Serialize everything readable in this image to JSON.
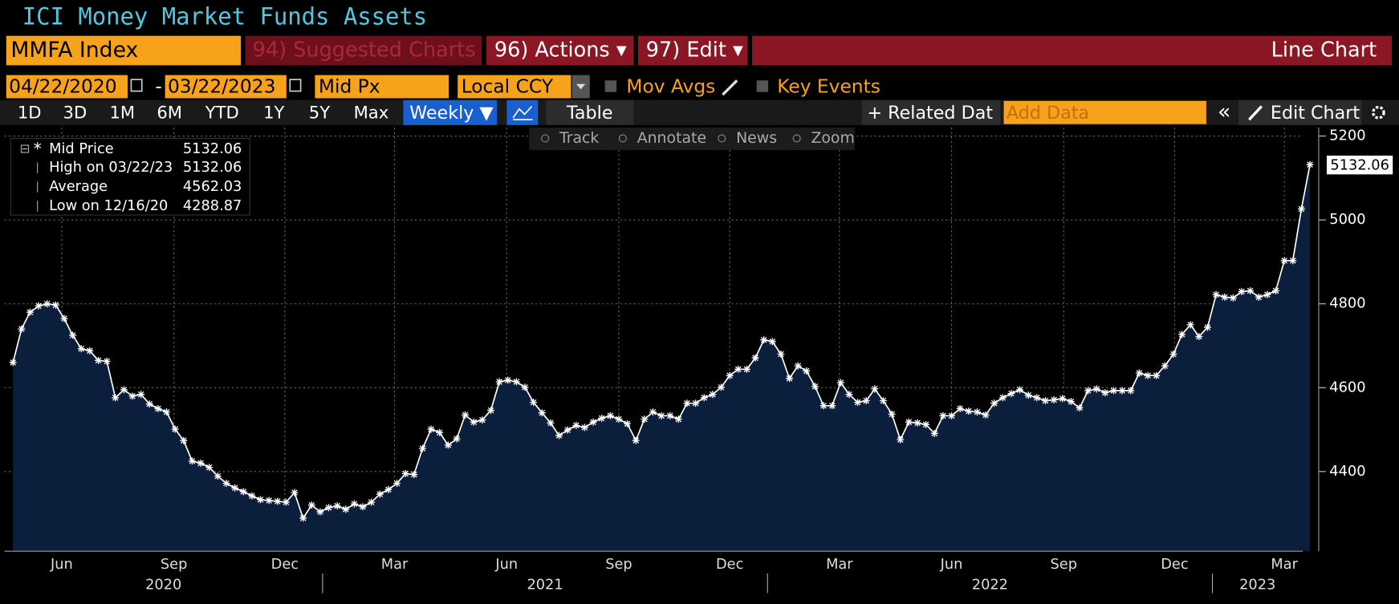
{
  "title": "ICI Money Market Funds Assets",
  "toolbar": {
    "ticker": "MMFA Index",
    "suggested": "94) Suggested Charts",
    "actions": "96) Actions ▾",
    "edit": "97) Edit ▾",
    "chart_kind": "Line Chart"
  },
  "controls": {
    "start_date": "04/22/2020",
    "separator": "-",
    "end_date": "03/22/2023",
    "field": "Mid Px",
    "currency": "Local CCY",
    "mov_avgs": "Mov Avgs",
    "key_events": "Key Events"
  },
  "periods": [
    "1D",
    "3D",
    "1M",
    "6M",
    "YTD",
    "1Y",
    "5Y",
    "Max"
  ],
  "frequency": "Weekly ▼",
  "table": "Table",
  "related": "+ Related Dat",
  "add_data": "Add Data",
  "back": "«",
  "edit_chart": "Edit Chart",
  "chart_tools": [
    "Track",
    "Annotate",
    "News",
    "Zoom"
  ],
  "chart_data": {
    "type": "line",
    "x": [
      "2020-04-22",
      "2020-04-29",
      "2020-05-06",
      "2020-05-13",
      "2020-05-20",
      "2020-05-27",
      "2020-06-03",
      "2020-06-10",
      "2020-06-17",
      "2020-06-24",
      "2020-07-01",
      "2020-07-08",
      "2020-07-15",
      "2020-07-22",
      "2020-07-29",
      "2020-08-05",
      "2020-08-12",
      "2020-08-19",
      "2020-08-26",
      "2020-09-02",
      "2020-09-09",
      "2020-09-16",
      "2020-09-23",
      "2020-09-30",
      "2020-10-07",
      "2020-10-14",
      "2020-10-21",
      "2020-10-28",
      "2020-11-04",
      "2020-11-11",
      "2020-11-18",
      "2020-11-25",
      "2020-12-02",
      "2020-12-09",
      "2020-12-16",
      "2020-12-23",
      "2020-12-30",
      "2021-01-06",
      "2021-01-13",
      "2021-01-20",
      "2021-01-27",
      "2021-02-03",
      "2021-02-10",
      "2021-02-17",
      "2021-02-24",
      "2021-03-03",
      "2021-03-10",
      "2021-03-17",
      "2021-03-24",
      "2021-03-31",
      "2021-04-07",
      "2021-04-14",
      "2021-04-21",
      "2021-04-28",
      "2021-05-05",
      "2021-05-12",
      "2021-05-19",
      "2021-05-26",
      "2021-06-02",
      "2021-06-09",
      "2021-06-16",
      "2021-06-23",
      "2021-06-30",
      "2021-07-07",
      "2021-07-14",
      "2021-07-21",
      "2021-07-28",
      "2021-08-04",
      "2021-08-11",
      "2021-08-18",
      "2021-08-25",
      "2021-09-01",
      "2021-09-08",
      "2021-09-15",
      "2021-09-22",
      "2021-09-29",
      "2021-10-06",
      "2021-10-13",
      "2021-10-20",
      "2021-10-27",
      "2021-11-03",
      "2021-11-10",
      "2021-11-17",
      "2021-11-24",
      "2021-12-01",
      "2021-12-08",
      "2021-12-15",
      "2021-12-22",
      "2021-12-29",
      "2022-01-05",
      "2022-01-12",
      "2022-01-19",
      "2022-01-26",
      "2022-02-02",
      "2022-02-09",
      "2022-02-16",
      "2022-02-23",
      "2022-03-02",
      "2022-03-09",
      "2022-03-16",
      "2022-03-23",
      "2022-03-30",
      "2022-04-06",
      "2022-04-13",
      "2022-04-20",
      "2022-04-27",
      "2022-05-04",
      "2022-05-11",
      "2022-05-18",
      "2022-05-25",
      "2022-06-01",
      "2022-06-08",
      "2022-06-15",
      "2022-06-22",
      "2022-06-29",
      "2022-07-06",
      "2022-07-13",
      "2022-07-20",
      "2022-07-27",
      "2022-08-03",
      "2022-08-10",
      "2022-08-17",
      "2022-08-24",
      "2022-08-31",
      "2022-09-07",
      "2022-09-14",
      "2022-09-21",
      "2022-09-28",
      "2022-10-05",
      "2022-10-12",
      "2022-10-19",
      "2022-10-26",
      "2022-11-02",
      "2022-11-09",
      "2022-11-16",
      "2022-11-23",
      "2022-11-30",
      "2022-12-07",
      "2022-12-14",
      "2022-12-21",
      "2022-12-28",
      "2023-01-04",
      "2023-01-11",
      "2023-01-18",
      "2023-01-25",
      "2023-02-01",
      "2023-02-08",
      "2023-02-15",
      "2023-02-22",
      "2023-03-01",
      "2023-03-08",
      "2023-03-15",
      "2023-03-22"
    ],
    "series": [
      {
        "name": "Mid Price",
        "color": "#ffffff",
        "fill": "#0b1f3d",
        "values": [
          4660,
          4740,
          4780,
          4795,
          4800,
          4797,
          4765,
          4725,
          4693,
          4688,
          4665,
          4663,
          4576,
          4595,
          4580,
          4584,
          4561,
          4550,
          4542,
          4501,
          4474,
          4425,
          4420,
          4410,
          4389,
          4372,
          4361,
          4352,
          4342,
          4333,
          4331,
          4329,
          4327,
          4350,
          4288.87,
          4320,
          4304,
          4314,
          4318,
          4310,
          4323,
          4316,
          4327,
          4346,
          4357,
          4372,
          4395,
          4393,
          4455,
          4501,
          4493,
          4463,
          4478,
          4535,
          4518,
          4523,
          4546,
          4614,
          4618,
          4614,
          4601,
          4565,
          4540,
          4516,
          4486,
          4499,
          4510,
          4505,
          4518,
          4527,
          4533,
          4525,
          4514,
          4474,
          4525,
          4542,
          4533,
          4533,
          4525,
          4563,
          4563,
          4576,
          4584,
          4601,
          4629,
          4644,
          4644,
          4671,
          4714,
          4710,
          4680,
          4622,
          4652,
          4640,
          4603,
          4557,
          4557,
          4612,
          4584,
          4565,
          4569,
          4597,
          4569,
          4537,
          4476,
          4518,
          4516,
          4512,
          4491,
          4533,
          4533,
          4550,
          4544,
          4542,
          4535,
          4563,
          4576,
          4586,
          4595,
          4582,
          4576,
          4569,
          4571,
          4574,
          4567,
          4552,
          4593,
          4597,
          4588,
          4593,
          4593,
          4593,
          4635,
          4629,
          4629,
          4652,
          4680,
          4727,
          4750,
          4722,
          4744,
          4822,
          4816,
          4814,
          4829,
          4831,
          4816,
          4822,
          4831,
          4903,
          4903,
          5026,
          5132.06
        ]
      }
    ],
    "stats": [
      {
        "label": "High on 03/22/23",
        "value": 5132.06
      },
      {
        "label": "Average",
        "value": 4562.03
      },
      {
        "label": "Low on 12/16/20",
        "value": 4288.87
      }
    ],
    "xlim": [
      "2020-04-15",
      "2023-03-27"
    ],
    "xticks": [
      {
        "value": "2020-06-01",
        "label": "Jun"
      },
      {
        "value": "2020-09-01",
        "label": "Sep"
      },
      {
        "value": "2020-12-01",
        "label": "Dec"
      },
      {
        "value": "2021-03-01",
        "label": "Mar"
      },
      {
        "value": "2021-06-01",
        "label": "Jun"
      },
      {
        "value": "2021-09-01",
        "label": "Sep"
      },
      {
        "value": "2021-12-01",
        "label": "Dec"
      },
      {
        "value": "2022-03-01",
        "label": "Mar"
      },
      {
        "value": "2022-06-01",
        "label": "Jun"
      },
      {
        "value": "2022-09-01",
        "label": "Sep"
      },
      {
        "value": "2022-12-01",
        "label": "Dec"
      },
      {
        "value": "2023-03-01",
        "label": "Mar"
      }
    ],
    "years": [
      "2020",
      "2021",
      "2022",
      "2023"
    ],
    "ylim": [
      4210,
      5220
    ],
    "yticks": [
      4400,
      4600,
      4800,
      5000,
      5200
    ],
    "grid": true
  }
}
